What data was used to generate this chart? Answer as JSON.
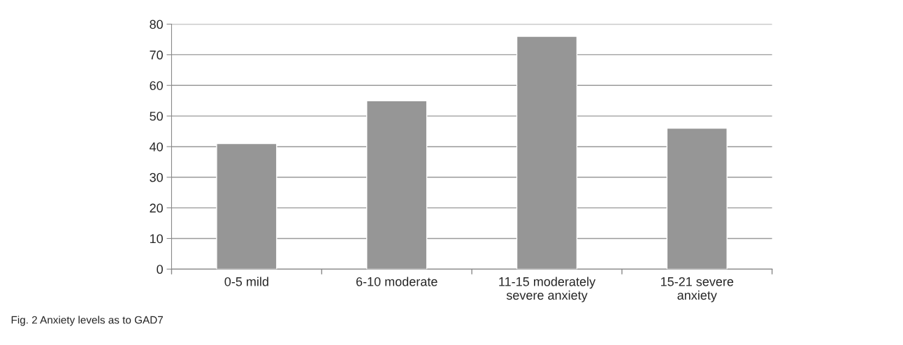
{
  "chart_data": {
    "type": "bar",
    "categories": [
      "0-5 mild",
      "6-10 moderate",
      "11-15 moderately\nsevere anxiety",
      "15-21 severe\nanxiety"
    ],
    "values": [
      41,
      55,
      76,
      46
    ],
    "color": "#969696",
    "ylim": [
      0,
      80
    ],
    "yticks": [
      0,
      10,
      20,
      30,
      40,
      50,
      60,
      70,
      80
    ],
    "grid": "y",
    "annotations": [
      "Fig. 2 Anxiety levels as to GAD7"
    ]
  }
}
